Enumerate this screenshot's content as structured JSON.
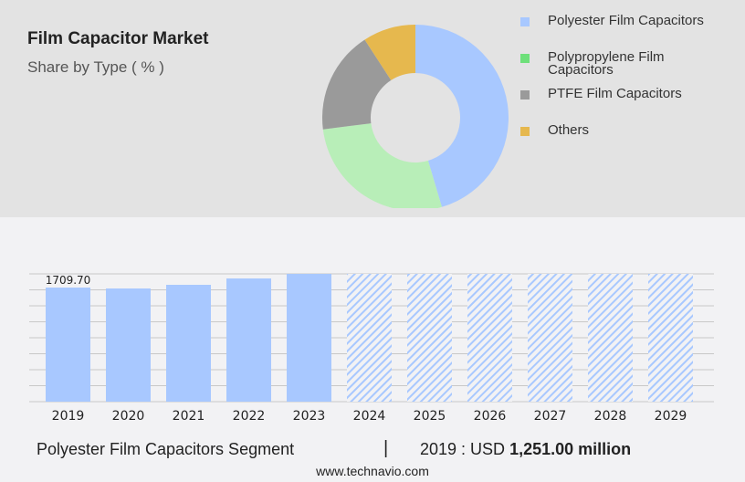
{
  "chart_data": [
    {
      "type": "pie",
      "title": "Film Capacitor Market",
      "subtitle": "Share by Type ( % )",
      "legend_position": "right",
      "slices": [
        {
          "name": "Polyester Film Capacitors",
          "value": 45.6,
          "color": "#a8c8ff"
        },
        {
          "name": "Polypropylene Film Capacitors",
          "value": 27.7,
          "color": "#b8eeb8",
          "legend_color": "#6ee07a"
        },
        {
          "name": "PTFE Film Capacitors",
          "value": 17.9,
          "color": "#9a9a9a"
        },
        {
          "name": "Others",
          "value": 9.2,
          "color": "#e6b84e"
        }
      ]
    },
    {
      "type": "bar",
      "categories": [
        "2019",
        "2020",
        "2021",
        "2022",
        "2023",
        "2024",
        "2025",
        "2026",
        "2027",
        "2028",
        "2029"
      ],
      "values": [
        1709.7,
        1696,
        1751,
        1846,
        1915,
        null,
        null,
        null,
        null,
        null,
        null
      ],
      "forecast": [
        false,
        false,
        false,
        false,
        false,
        true,
        true,
        true,
        true,
        true,
        true
      ],
      "data_labels": {
        "2019": "1709.70"
      },
      "ylim": [
        0,
        1915
      ],
      "grid": true,
      "color": "#a8c8ff"
    }
  ],
  "footer": {
    "segment": "Polyester Film Capacitors Segment",
    "separator": "|",
    "year_label": "2019 : USD",
    "value": "1,251.00 million",
    "site": "www.technavio.com"
  }
}
